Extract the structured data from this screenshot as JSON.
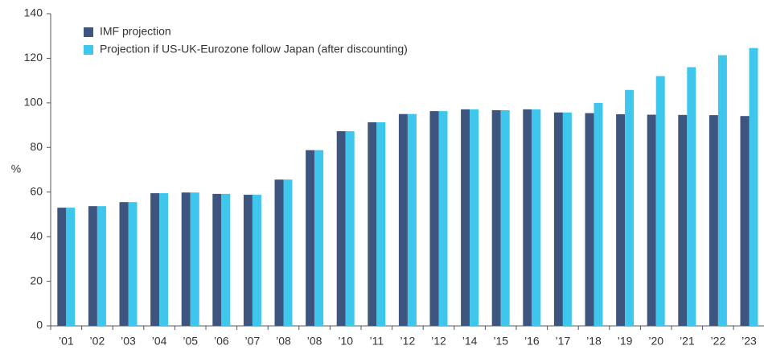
{
  "chart_data": {
    "type": "bar",
    "categories": [
      "’01",
      "’02",
      "’03",
      "’04",
      "’05",
      "’06",
      "’07",
      "’08",
      "’08",
      "’10",
      "’11",
      "’12",
      "’12",
      "’14",
      "’15",
      "’16",
      "’17",
      "’18",
      "’19",
      "’20",
      "’21",
      "’22",
      "’23"
    ],
    "series": [
      {
        "name": "IMF projection",
        "color": "#3e5580",
        "values": [
          53,
          53.7,
          55.5,
          59.5,
          59.8,
          59.2,
          58.8,
          65.6,
          78.8,
          87.3,
          91.3,
          95,
          96.3,
          97.1,
          96.7,
          97.1,
          95.7,
          95.4,
          94.9,
          94.7,
          94.6,
          94.5,
          94.1
        ]
      },
      {
        "name": "Projection if US-UK-Eurozone follow Japan (after discounting)",
        "color": "#3fc6ec",
        "values": [
          53,
          53.7,
          55.5,
          59.5,
          59.8,
          59.2,
          58.8,
          65.6,
          78.8,
          87.3,
          91.3,
          95,
          96.3,
          97.1,
          96.7,
          97.1,
          95.7,
          100,
          105.8,
          112,
          116,
          121.4,
          124.6
        ]
      }
    ],
    "y_label": "%",
    "ylim": [
      0,
      140
    ],
    "yticks": [
      0,
      20,
      40,
      60,
      80,
      100,
      120,
      140
    ],
    "legend": "top-left"
  }
}
